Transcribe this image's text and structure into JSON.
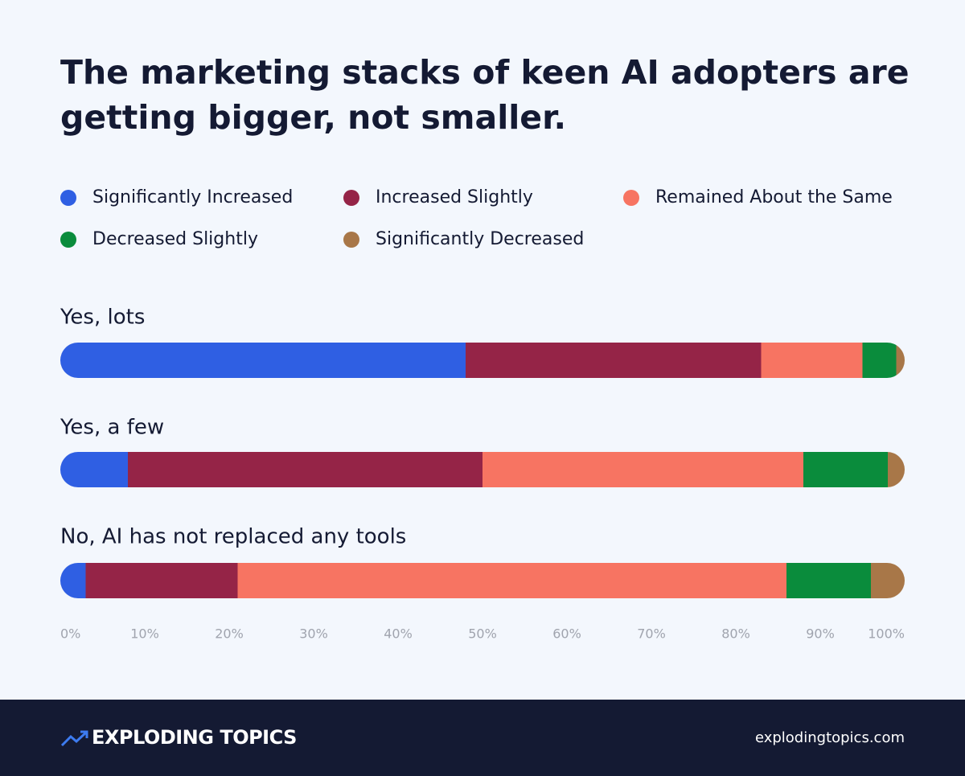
{
  "chart_data": {
    "type": "stacked-bar-horizontal",
    "title": "The marketing stacks of keen AI adopters are getting bigger, not smaller.",
    "categories": [
      "Yes, lots",
      "Yes, a few",
      "No, AI has not replaced any tools"
    ],
    "series": [
      {
        "name": "Significantly Increased",
        "color": "#2f5fe3",
        "values": [
          48,
          8,
          3
        ]
      },
      {
        "name": "Increased Slightly",
        "color": "#952447",
        "values": [
          35,
          42,
          18
        ]
      },
      {
        "name": "Remained About the Same",
        "color": "#f77462",
        "values": [
          12,
          38,
          65
        ]
      },
      {
        "name": "Decreased Slightly",
        "color": "#0a8c3c",
        "values": [
          4,
          10,
          10
        ]
      },
      {
        "name": "Significantly Decreased",
        "color": "#a87748",
        "values": [
          1,
          2,
          4
        ]
      }
    ],
    "xlim": [
      0,
      100
    ],
    "xticks": [
      {
        "value": 0,
        "label": "0%"
      },
      {
        "value": 10,
        "label": "10%"
      },
      {
        "value": 20,
        "label": "20%"
      },
      {
        "value": 30,
        "label": "30%"
      },
      {
        "value": 40,
        "label": "40%"
      },
      {
        "value": 50,
        "label": "50%"
      },
      {
        "value": 60,
        "label": "60%"
      },
      {
        "value": 70,
        "label": "70%"
      },
      {
        "value": 80,
        "label": "80%"
      },
      {
        "value": 90,
        "label": "90%"
      },
      {
        "value": 100,
        "label": "100%"
      }
    ]
  },
  "footer": {
    "brand": "EXPLODING TOPICS",
    "url": "explodingtopics.com"
  }
}
